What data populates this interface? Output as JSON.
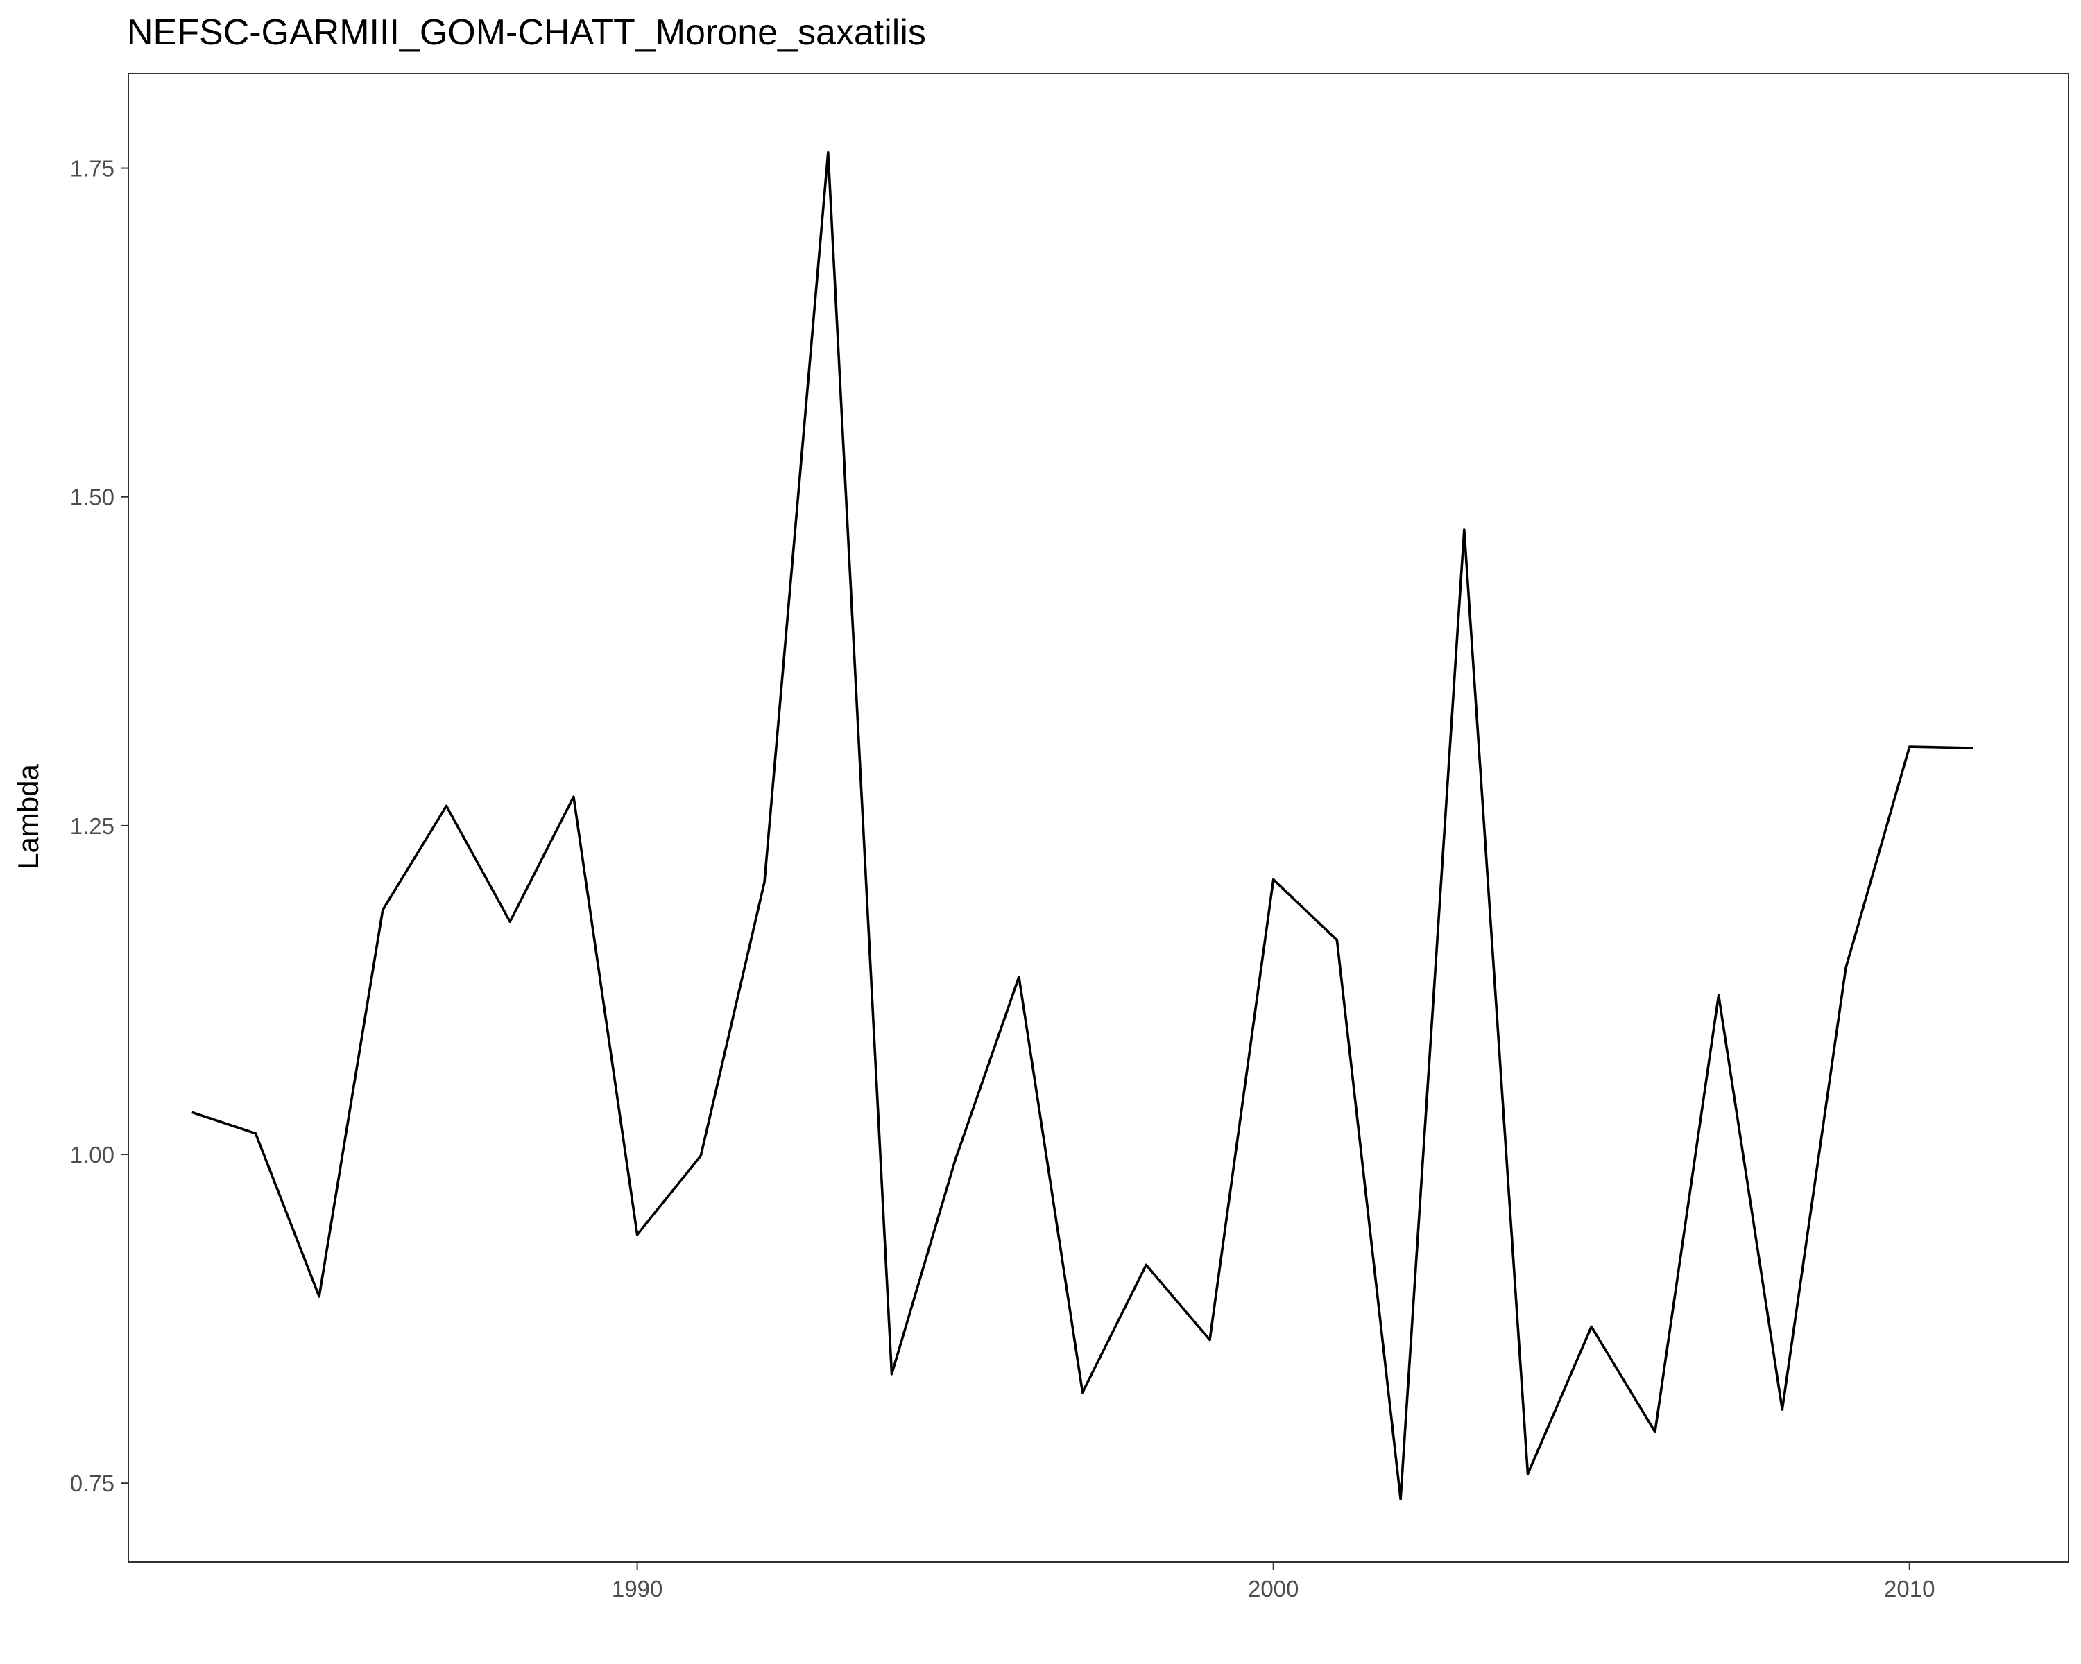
{
  "chart_data": {
    "type": "line",
    "title": "NEFSC-GARMIII_GOM-CHATT_Morone_saxatilis",
    "xlabel": "",
    "ylabel": "Lambda",
    "xlim": [
      1982.0,
      2012.5
    ],
    "ylim": [
      0.69,
      1.822
    ],
    "x_ticks": [
      1990,
      2000,
      2010
    ],
    "x_tick_labels": [
      "1990",
      "2000",
      "2010"
    ],
    "y_ticks": [
      0.75,
      1.0,
      1.25,
      1.5,
      1.75
    ],
    "y_tick_labels": [
      "0.75",
      "1.00",
      "1.25",
      "1.50",
      "1.75"
    ],
    "grid": false,
    "legend": "none",
    "series": [
      {
        "color": "#000000",
        "x": [
          1983,
          1984,
          1985,
          1986,
          1987,
          1988,
          1989,
          1990,
          1991,
          1992,
          1993,
          1994,
          1995,
          1996,
          1997,
          1998,
          1999,
          2000,
          2001,
          2002,
          2003,
          2004,
          2005,
          2006,
          2007,
          2008,
          2009,
          2010,
          2011
        ],
        "y": [
          1.032,
          1.016,
          0.892,
          1.186,
          1.265,
          1.177,
          1.272,
          0.939,
          0.999,
          1.207,
          1.762,
          0.833,
          0.996,
          1.135,
          0.819,
          0.916,
          0.859,
          1.209,
          1.163,
          0.738,
          1.475,
          0.757,
          0.869,
          0.789,
          1.121,
          0.806,
          1.142,
          1.31,
          1.309
        ]
      }
    ]
  }
}
